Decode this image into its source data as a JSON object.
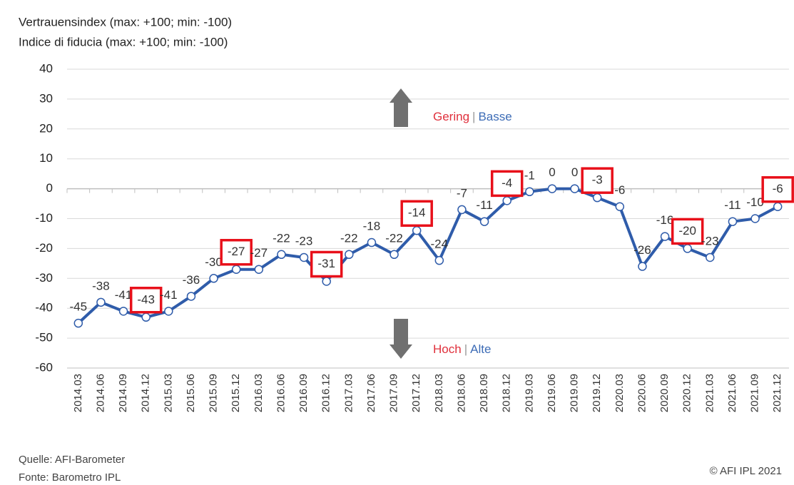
{
  "chart_data": {
    "type": "line",
    "title": "Vertrauensindex (max: +100; min: -100)",
    "subtitle": "Indice di fiducia (max: +100; min: -100)",
    "categories": [
      "2014.03",
      "2014.06",
      "2014.09",
      "2014.12",
      "2015.03",
      "2015.06",
      "2015.09",
      "2015.12",
      "2016.03",
      "2016.06",
      "2016.09",
      "2016.12",
      "2017.03",
      "2017.06",
      "2017.09",
      "2017.12",
      "2018.03",
      "2018.06",
      "2018.09",
      "2018.12",
      "2019.03",
      "2019.06",
      "2019.09",
      "2019.12",
      "2020.03",
      "2020.06",
      "2020.09",
      "2020.12",
      "2021.03",
      "2021.06",
      "2021.09",
      "2021.12"
    ],
    "series": [
      {
        "name": "Vertrauensindex",
        "color": "#2f5caa",
        "values": [
          -45,
          -38,
          -41,
          -43,
          -41,
          -36,
          -30,
          -27,
          -27,
          -22,
          -23,
          -31,
          -22,
          -18,
          -22,
          -14,
          -24,
          -7,
          -11,
          -4,
          -1,
          0,
          0,
          -3,
          -6,
          -26,
          -16,
          -20,
          -23,
          -11,
          -10,
          -6
        ]
      }
    ],
    "boxed_categories": [
      "2014.12",
      "2015.12",
      "2016.12",
      "2017.12",
      "2018.12",
      "2019.12",
      "2020.12",
      "2021.12"
    ],
    "box_color": "#e8101a",
    "ylim": [
      -60,
      40
    ],
    "yticks": [
      -60,
      -50,
      -40,
      -30,
      -20,
      -10,
      0,
      10,
      20,
      30,
      40
    ],
    "grid": true,
    "annotations": {
      "up": {
        "low": "Gering",
        "sep": "|",
        "high": "Basse"
      },
      "down": {
        "low": "Hoch",
        "sep": "|",
        "high": "Alte"
      },
      "red": "#e0303c",
      "blue": "#3d6cb6",
      "arrow_color": "#707070"
    },
    "source": [
      "Quelle: AFI-Barometer",
      "Fonte: Barometro IPL"
    ],
    "copyright": "© AFI IPL 2021"
  }
}
